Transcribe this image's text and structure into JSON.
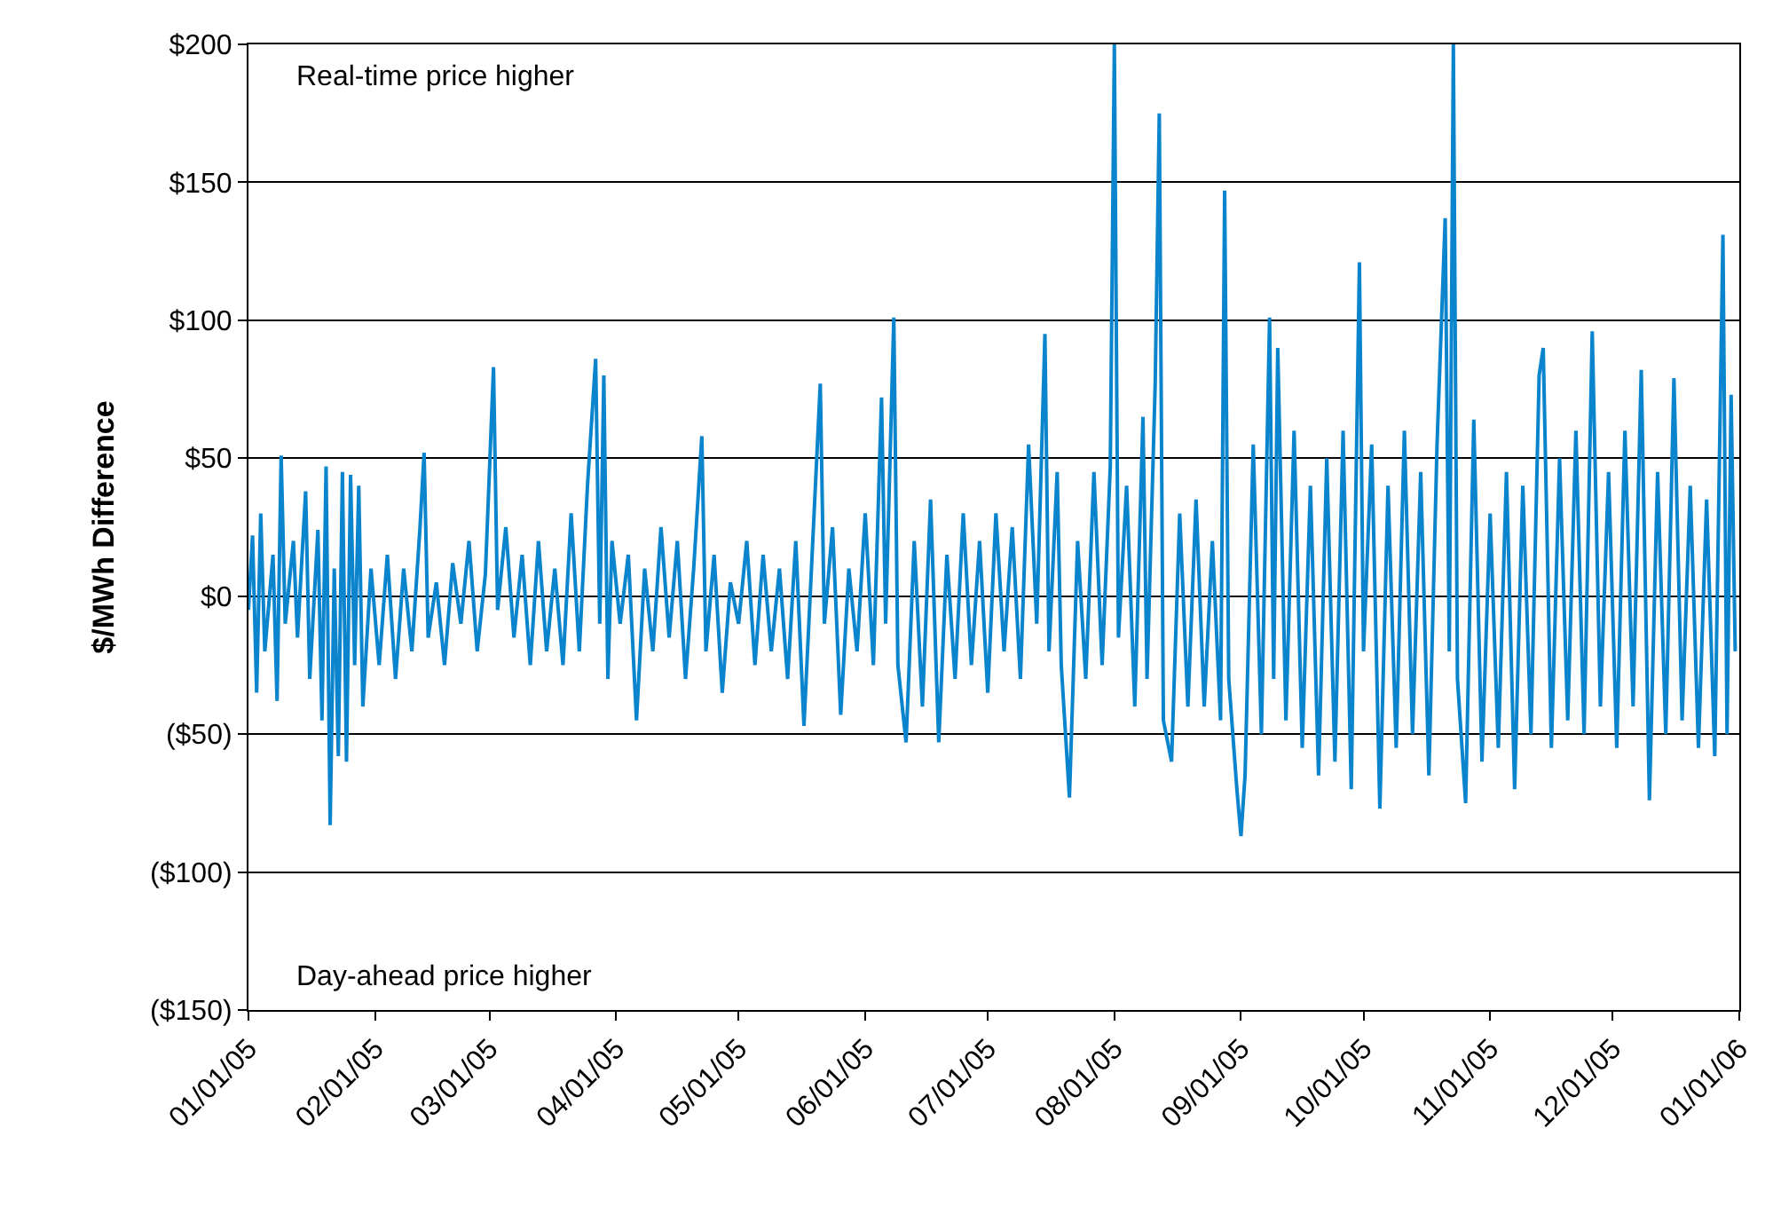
{
  "chart_data": {
    "type": "line",
    "ylabel": "$/MWh Difference",
    "annotations": [
      "Real-time price higher",
      "Day-ahead price higher"
    ],
    "x": [
      "2005-01-01",
      "2005-01-02",
      "2005-01-03",
      "2005-01-04",
      "2005-01-05",
      "2005-01-07",
      "2005-01-08",
      "2005-01-09",
      "2005-01-10",
      "2005-01-12",
      "2005-01-13",
      "2005-01-15",
      "2005-01-16",
      "2005-01-18",
      "2005-01-19",
      "2005-01-20",
      "2005-01-21",
      "2005-01-22",
      "2005-01-23",
      "2005-01-24",
      "2005-01-25",
      "2005-01-26",
      "2005-01-27",
      "2005-01-28",
      "2005-01-29",
      "2005-01-31",
      "2005-02-02",
      "2005-02-04",
      "2005-02-06",
      "2005-02-08",
      "2005-02-10",
      "2005-02-12",
      "2005-02-13",
      "2005-02-14",
      "2005-02-16",
      "2005-02-18",
      "2005-02-20",
      "2005-02-22",
      "2005-02-24",
      "2005-02-26",
      "2005-02-28",
      "2005-03-02",
      "2005-03-03",
      "2005-03-05",
      "2005-03-07",
      "2005-03-09",
      "2005-03-11",
      "2005-03-13",
      "2005-03-15",
      "2005-03-17",
      "2005-03-19",
      "2005-03-21",
      "2005-03-23",
      "2005-03-25",
      "2005-03-27",
      "2005-03-28",
      "2005-03-29",
      "2005-03-30",
      "2005-03-31",
      "2005-04-02",
      "2005-04-04",
      "2005-04-06",
      "2005-04-08",
      "2005-04-10",
      "2005-04-12",
      "2005-04-14",
      "2005-04-16",
      "2005-04-18",
      "2005-04-20",
      "2005-04-22",
      "2005-04-23",
      "2005-04-25",
      "2005-04-27",
      "2005-04-29",
      "2005-05-01",
      "2005-05-03",
      "2005-05-05",
      "2005-05-07",
      "2005-05-09",
      "2005-05-11",
      "2005-05-13",
      "2005-05-15",
      "2005-05-17",
      "2005-05-19",
      "2005-05-21",
      "2005-05-22",
      "2005-05-24",
      "2005-05-26",
      "2005-05-28",
      "2005-05-30",
      "2005-06-01",
      "2005-06-03",
      "2005-06-05",
      "2005-06-06",
      "2005-06-08",
      "2005-06-09",
      "2005-06-11",
      "2005-06-13",
      "2005-06-15",
      "2005-06-17",
      "2005-06-19",
      "2005-06-21",
      "2005-06-23",
      "2005-06-25",
      "2005-06-27",
      "2005-06-29",
      "2005-07-01",
      "2005-07-03",
      "2005-07-05",
      "2005-07-07",
      "2005-07-09",
      "2005-07-11",
      "2005-07-13",
      "2005-07-15",
      "2005-07-16",
      "2005-07-18",
      "2005-07-19",
      "2005-07-21",
      "2005-07-23",
      "2005-07-25",
      "2005-07-27",
      "2005-07-29",
      "2005-07-31",
      "2005-08-01",
      "2005-08-02",
      "2005-08-04",
      "2005-08-06",
      "2005-08-08",
      "2005-08-09",
      "2005-08-11",
      "2005-08-12",
      "2005-08-13",
      "2005-08-15",
      "2005-08-17",
      "2005-08-19",
      "2005-08-21",
      "2005-08-23",
      "2005-08-25",
      "2005-08-27",
      "2005-08-28",
      "2005-08-29",
      "2005-08-31",
      "2005-09-01",
      "2005-09-02",
      "2005-09-04",
      "2005-09-06",
      "2005-09-08",
      "2005-09-09",
      "2005-09-10",
      "2005-09-12",
      "2005-09-14",
      "2005-09-16",
      "2005-09-18",
      "2005-09-20",
      "2005-09-22",
      "2005-09-24",
      "2005-09-26",
      "2005-09-28",
      "2005-09-30",
      "2005-10-01",
      "2005-10-03",
      "2005-10-05",
      "2005-10-07",
      "2005-10-09",
      "2005-10-11",
      "2005-10-13",
      "2005-10-15",
      "2005-10-17",
      "2005-10-19",
      "2005-10-21",
      "2005-10-22",
      "2005-10-23",
      "2005-10-24",
      "2005-10-26",
      "2005-10-28",
      "2005-10-30",
      "2005-11-01",
      "2005-11-03",
      "2005-11-05",
      "2005-11-07",
      "2005-11-09",
      "2005-11-11",
      "2005-11-13",
      "2005-11-14",
      "2005-11-16",
      "2005-11-18",
      "2005-11-20",
      "2005-11-22",
      "2005-11-24",
      "2005-11-26",
      "2005-11-28",
      "2005-11-30",
      "2005-12-02",
      "2005-12-04",
      "2005-12-06",
      "2005-12-08",
      "2005-12-10",
      "2005-12-12",
      "2005-12-14",
      "2005-12-16",
      "2005-12-18",
      "2005-12-20",
      "2005-12-22",
      "2005-12-24",
      "2005-12-26",
      "2005-12-28",
      "2005-12-29",
      "2005-12-30",
      "2005-12-31"
    ],
    "series": [
      {
        "color": "#0a84cc",
        "values": [
          -5,
          22,
          -35,
          30,
          -20,
          15,
          -38,
          51,
          -10,
          20,
          -15,
          38,
          -30,
          24,
          -45,
          47,
          -83,
          10,
          -58,
          45,
          -60,
          44,
          -25,
          40,
          -40,
          10,
          -25,
          15,
          -30,
          10,
          -20,
          25,
          52,
          -15,
          5,
          -25,
          12,
          -10,
          20,
          -20,
          8,
          83,
          -5,
          25,
          -15,
          15,
          -25,
          20,
          -20,
          10,
          -25,
          30,
          -20,
          40,
          86,
          -10,
          80,
          -30,
          20,
          -10,
          15,
          -45,
          10,
          -20,
          25,
          -15,
          20,
          -30,
          10,
          58,
          -20,
          15,
          -35,
          5,
          -10,
          20,
          -25,
          15,
          -20,
          10,
          -30,
          20,
          -47,
          15,
          77,
          -10,
          25,
          -43,
          10,
          -20,
          30,
          -25,
          72,
          -10,
          101,
          -25,
          -53,
          20,
          -40,
          35,
          -53,
          15,
          -30,
          30,
          -25,
          20,
          -35,
          30,
          -20,
          25,
          -30,
          55,
          -10,
          95,
          -20,
          45,
          -25,
          -73,
          20,
          -30,
          45,
          -25,
          47,
          200,
          -15,
          40,
          -40,
          65,
          -30,
          77,
          175,
          -45,
          -60,
          30,
          -40,
          35,
          -40,
          20,
          -45,
          147,
          -30,
          -70,
          -87,
          -65,
          55,
          -50,
          101,
          -30,
          90,
          -45,
          60,
          -55,
          40,
          -65,
          50,
          -60,
          60,
          -70,
          121,
          -20,
          55,
          -77,
          40,
          -55,
          60,
          -50,
          45,
          -65,
          55,
          137,
          -20,
          200,
          -30,
          -75,
          64,
          -60,
          30,
          -55,
          45,
          -70,
          40,
          -50,
          80,
          90,
          -55,
          50,
          -45,
          60,
          -50,
          96,
          -40,
          45,
          -55,
          60,
          -40,
          82,
          -74,
          45,
          -50,
          79,
          -45,
          40,
          -55,
          35,
          -58,
          131,
          -50,
          73,
          -20
        ]
      }
    ],
    "xlim": [
      "2005-01-01",
      "2006-01-01"
    ],
    "xticks": [
      {
        "value": "2005-01-01",
        "label": "01/01/05"
      },
      {
        "value": "2005-02-01",
        "label": "02/01/05"
      },
      {
        "value": "2005-03-01",
        "label": "03/01/05"
      },
      {
        "value": "2005-04-01",
        "label": "04/01/05"
      },
      {
        "value": "2005-05-01",
        "label": "05/01/05"
      },
      {
        "value": "2005-06-01",
        "label": "06/01/05"
      },
      {
        "value": "2005-07-01",
        "label": "07/01/05"
      },
      {
        "value": "2005-08-01",
        "label": "08/01/05"
      },
      {
        "value": "2005-09-01",
        "label": "09/01/05"
      },
      {
        "value": "2005-10-01",
        "label": "10/01/05"
      },
      {
        "value": "2005-11-01",
        "label": "11/01/05"
      },
      {
        "value": "2005-12-01",
        "label": "12/01/05"
      },
      {
        "value": "2006-01-01",
        "label": "01/01/06"
      }
    ],
    "ylim": [
      -150,
      200
    ],
    "yticks": [
      {
        "value": -150,
        "label": "($150)"
      },
      {
        "value": -100,
        "label": "($100)"
      },
      {
        "value": -50,
        "label": "($50)"
      },
      {
        "value": 0,
        "label": "$0"
      },
      {
        "value": 50,
        "label": "$50"
      },
      {
        "value": 100,
        "label": "$100"
      },
      {
        "value": 150,
        "label": "$150"
      },
      {
        "value": 200,
        "label": "$200"
      }
    ],
    "grid": "y",
    "marker": "none",
    "line_style": "solid"
  }
}
